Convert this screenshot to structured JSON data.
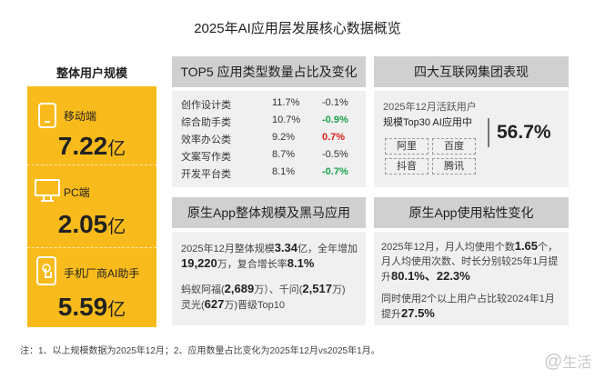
{
  "title": "2025年AI应用层发展核心数据概览",
  "users": {
    "heading": "整体用户规模",
    "unit": "亿",
    "items": [
      {
        "label": "移动端",
        "value": "7.22",
        "icon": "mobile-phone-icon"
      },
      {
        "label": "PC端",
        "value": "2.05",
        "icon": "desktop-monitor-icon"
      },
      {
        "label": "手机厂商AI助手",
        "value": "5.59",
        "icon": "touch-hand-icon"
      }
    ]
  },
  "top5": {
    "title": "TOP5 应用类型数量占比及变化",
    "rows": [
      {
        "name": "创作设计类",
        "share": "11.7%",
        "change": "-0.1%",
        "status": "neutral"
      },
      {
        "name": "综合助手类",
        "share": "10.7%",
        "change": "-0.9%",
        "status": "green"
      },
      {
        "name": "效率办公类",
        "share": "9.2%",
        "change": "0.7%",
        "status": "red"
      },
      {
        "name": "文案写作类",
        "share": "8.7%",
        "change": "-0.5%",
        "status": "neutral"
      },
      {
        "name": "开发平台类",
        "share": "8.1%",
        "change": "-0.7%",
        "status": "green"
      }
    ],
    "colors": {
      "green": "#1aa34a",
      "red": "#e0201c"
    }
  },
  "groups": {
    "title": "四大互联网集团表现",
    "line1": "2025年12月活跃用户",
    "line2": "规模Top30 AI应用中",
    "value": "56.7%",
    "tags": [
      "阿里",
      "百度",
      "抖音",
      "腾讯"
    ]
  },
  "native": {
    "title": "原生App整体规模及黑马应用",
    "p1": [
      "2025年12月整体规模",
      "3.34",
      "亿，全年增加",
      "19,220",
      "万，复合增长率",
      "8.1%"
    ],
    "p2": [
      "蚂蚁阿福(",
      "2,689",
      "万）、千问(",
      "2,517",
      "万)",
      "灵光(",
      "627",
      "万)晋级Top10"
    ]
  },
  "sticky": {
    "title": "原生App使用粘性变化",
    "p1": [
      "2025年12月，月人均使用个数",
      "1.65",
      "个，月人均使用次数、时长分别较25年1月提升",
      "80.1%、22.3%"
    ],
    "p2": [
      "同时使用2个以上用户占比较2024年1月提升",
      "27.5%"
    ]
  },
  "note": "注：1、以上规模数据为2025年12月；2、应用数量占比变化为2025年12月vs2025年1月。",
  "watermark": "易生活",
  "accent": "#F9BB1B"
}
